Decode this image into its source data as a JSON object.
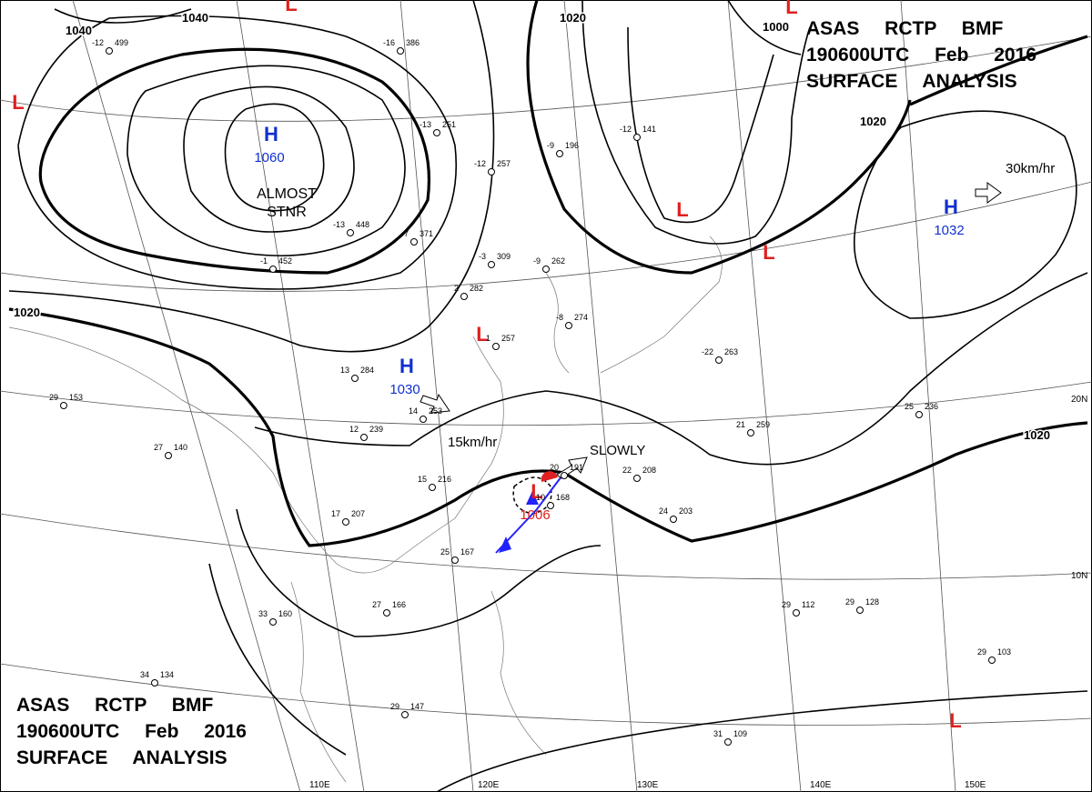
{
  "header": {
    "lines": [
      "ASAS RCTP BMF",
      "190600UTC Feb 2016",
      "SURFACE ANALYSIS"
    ]
  },
  "pressure_centers": [
    {
      "symbol": "H",
      "value": 1060
    },
    {
      "symbol": "H",
      "value": 1030
    },
    {
      "symbol": "H",
      "value": 1032
    },
    {
      "symbol": "L",
      "value": 1006
    },
    {
      "symbol": "L"
    },
    {
      "symbol": "L"
    },
    {
      "symbol": "L"
    },
    {
      "symbol": "L"
    },
    {
      "symbol": "L"
    },
    {
      "symbol": "L"
    },
    {
      "symbol": "L"
    }
  ],
  "center_notes": [
    "ALMOST",
    "STNR"
  ],
  "isobar_labels": [
    1040,
    1040,
    1020,
    1020,
    1020,
    1000,
    1020
  ],
  "motions": [
    "15km/hr",
    "SLOWLY",
    "30km/hr"
  ],
  "lat_labels": [
    "20N",
    "10N"
  ],
  "lon_labels": [
    "110E",
    "120E",
    "130E",
    "140E",
    "150E"
  ],
  "stations": [
    {
      "temp": -12,
      "pres": 499
    },
    {
      "temp": -16,
      "pres": 386
    },
    {
      "temp": -13,
      "pres": 251
    },
    {
      "temp": -12,
      "pres": 257
    },
    {
      "temp": -9,
      "pres": 196
    },
    {
      "temp": -12,
      "pres": 141
    },
    {
      "temp": -7,
      "pres": 371
    },
    {
      "temp": -1,
      "pres": 452
    },
    {
      "temp": -13,
      "pres": 448
    },
    {
      "temp": -3,
      "pres": 309
    },
    {
      "temp": -9,
      "pres": 262
    },
    {
      "temp": 2,
      "pres": 282
    },
    {
      "temp": -8,
      "pres": 274
    },
    {
      "temp": 1,
      "pres": 257
    },
    {
      "temp": 13,
      "pres": 284
    },
    {
      "temp": 14,
      "pres": 253
    },
    {
      "temp": 12,
      "pres": 239
    },
    {
      "temp": 29,
      "pres": 153
    },
    {
      "temp": 27,
      "pres": 140
    },
    {
      "temp": 15,
      "pres": 216
    },
    {
      "temp": 17,
      "pres": 207
    },
    {
      "temp": 25,
      "pres": 167
    },
    {
      "temp": 27,
      "pres": 166
    },
    {
      "temp": 33,
      "pres": 160
    },
    {
      "temp": 34,
      "pres": 134
    },
    {
      "temp": 29,
      "pres": 147
    },
    {
      "temp": 21,
      "pres": 259
    },
    {
      "temp": 25,
      "pres": 236
    },
    {
      "temp": 24,
      "pres": 203
    },
    {
      "temp": 29,
      "pres": 112
    },
    {
      "temp": 29,
      "pres": 128
    },
    {
      "temp": 29,
      "pres": 103
    },
    {
      "temp": 31,
      "pres": 109
    },
    {
      "temp": 10,
      "pres": 168
    },
    {
      "temp": 20,
      "pres": 191
    },
    {
      "temp": 22,
      "pres": 208
    },
    {
      "temp": -22,
      "pres": 263
    }
  ]
}
